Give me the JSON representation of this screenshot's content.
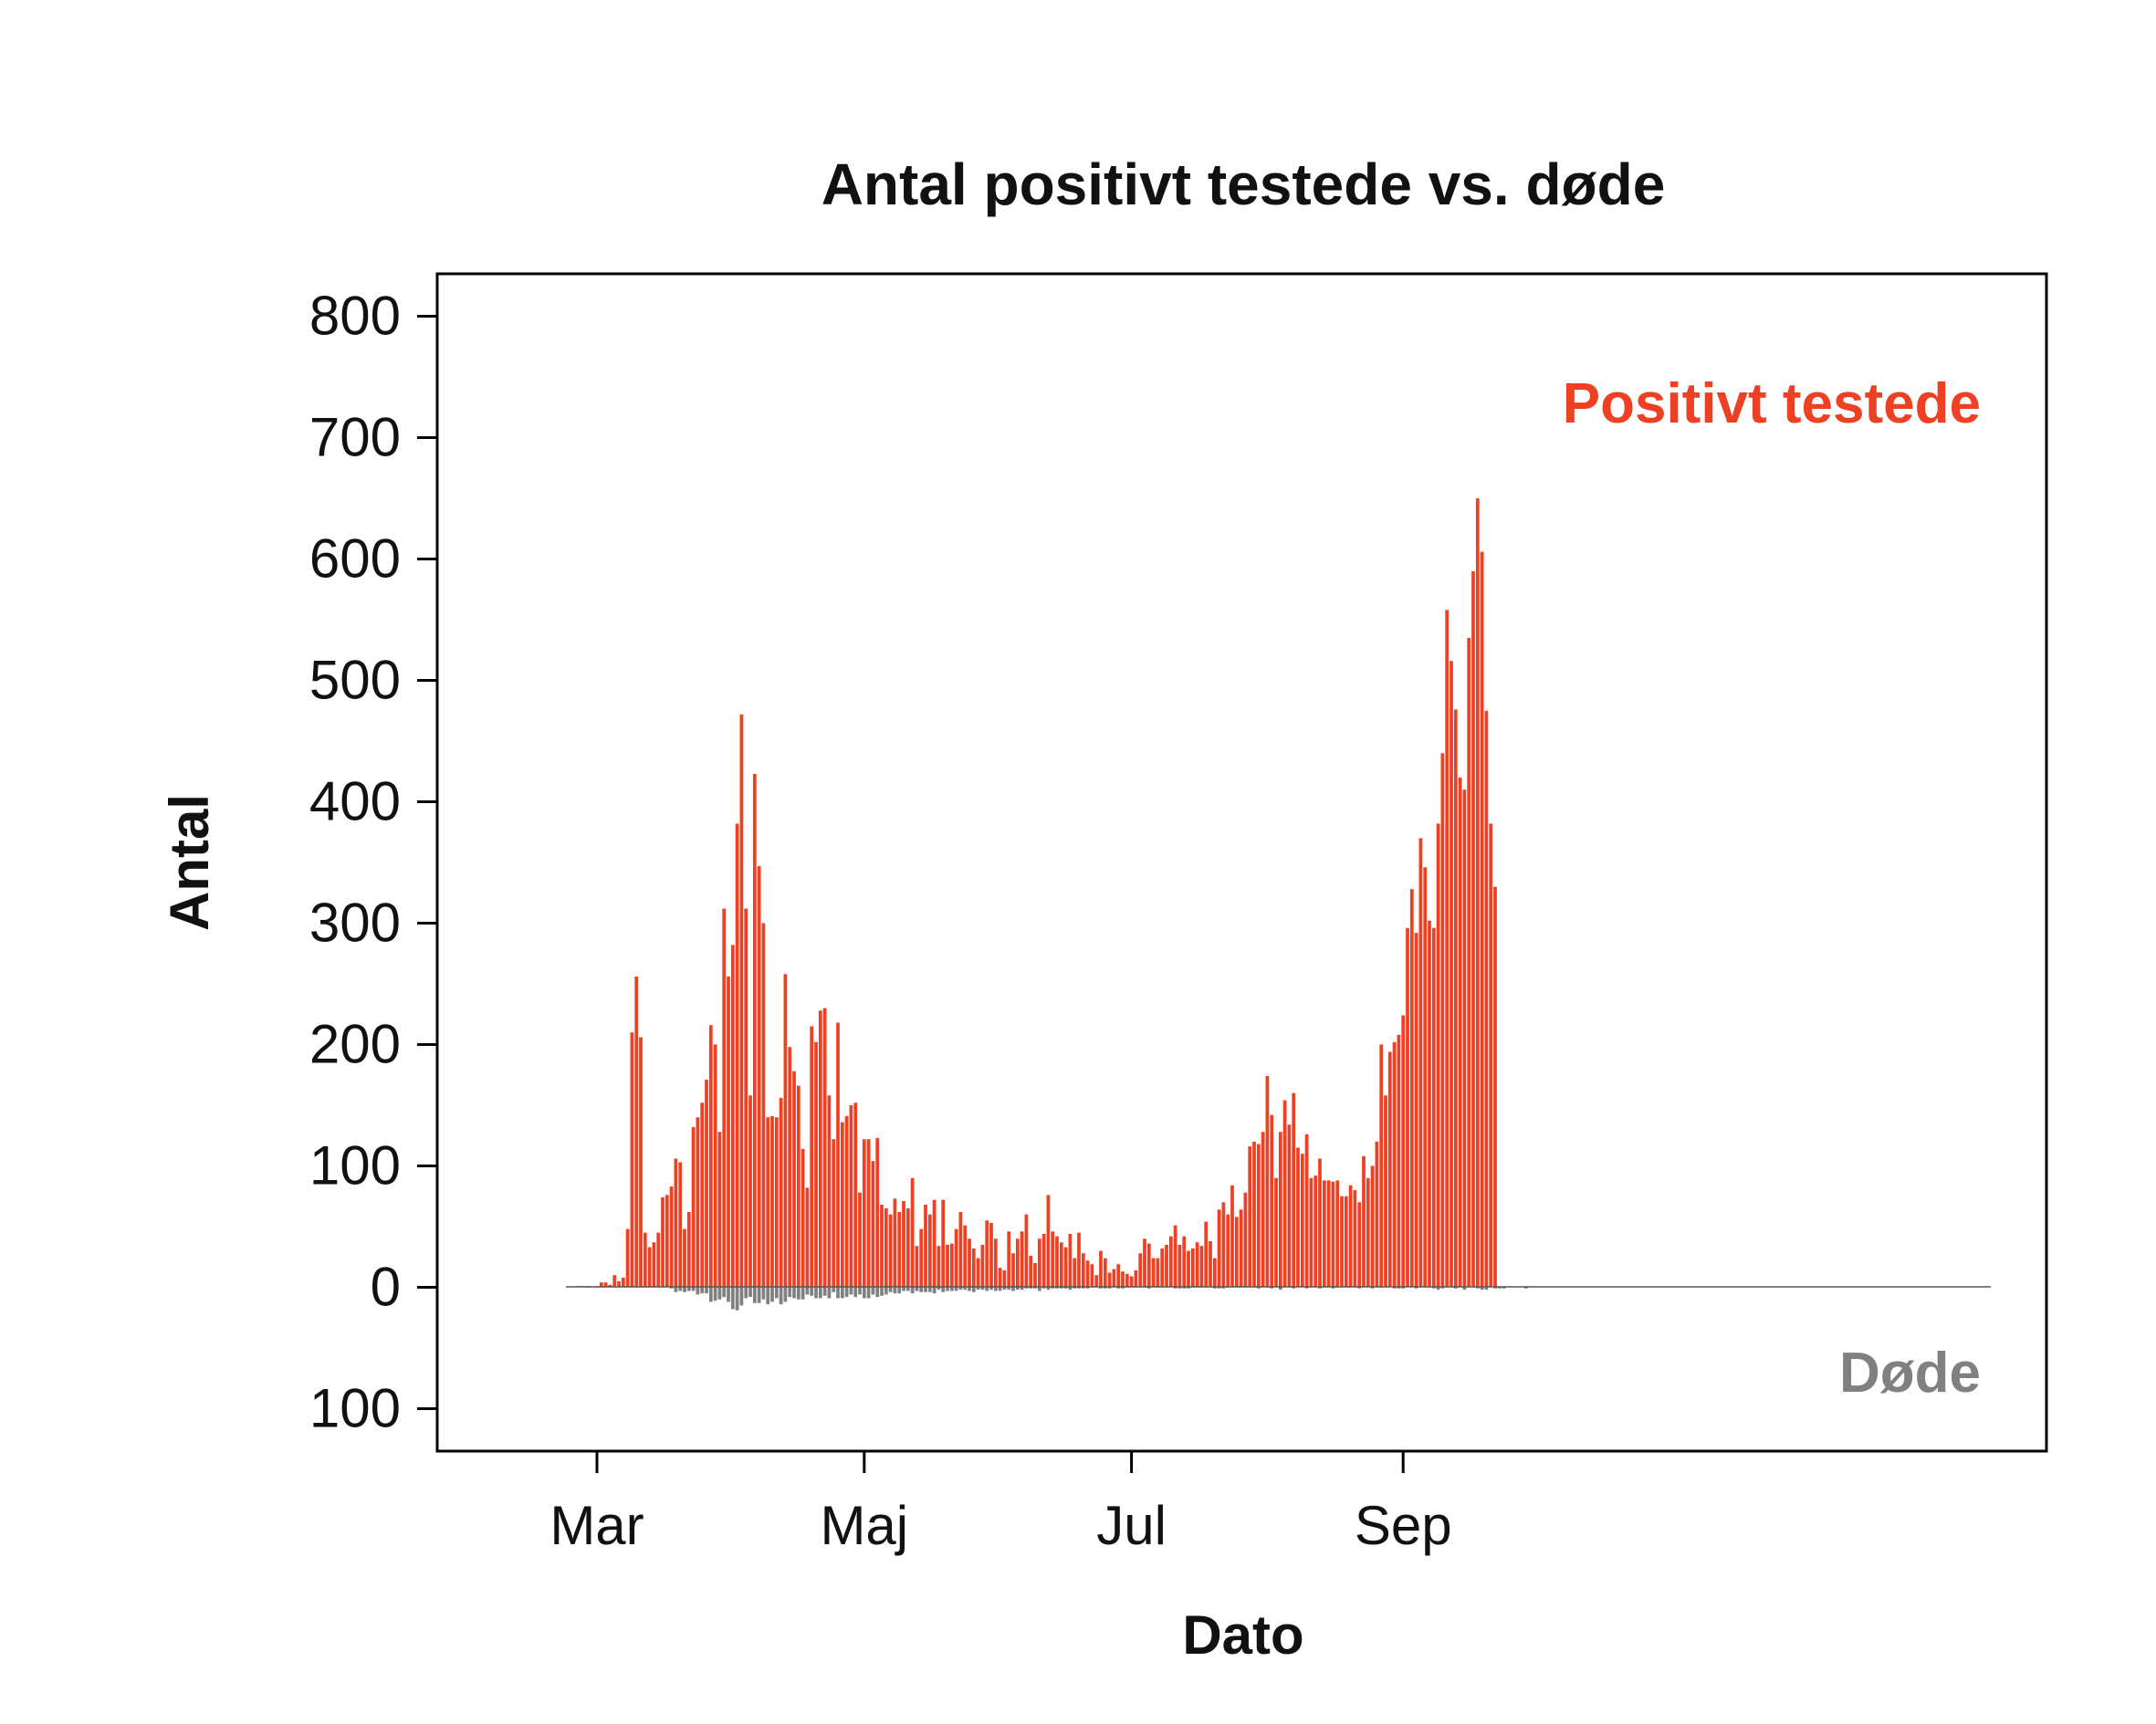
{
  "chart_data": {
    "type": "bar",
    "title": "Antal positivt testede vs. døde",
    "xlabel": "Dato",
    "ylabel": "Antal",
    "ylim": [
      -135,
      835
    ],
    "y_ticks": [
      800,
      700,
      600,
      500,
      400,
      300,
      200,
      100,
      0,
      -100
    ],
    "y_tick_labels": [
      "800",
      "700",
      "600",
      "500",
      "400",
      "300",
      "200",
      "100",
      "0",
      "100"
    ],
    "x_ticks": [
      {
        "label": "Mar",
        "day": 0
      },
      {
        "label": "Maj",
        "day": 61
      },
      {
        "label": "Jul",
        "day": 122
      },
      {
        "label": "Sep",
        "day": 184
      }
    ],
    "start_day": -4,
    "legend": [
      {
        "name": "Positivt testede",
        "color": "#ee4023",
        "position": "top-right"
      },
      {
        "name": "Døde",
        "color": "#808080",
        "position": "bottom-right"
      }
    ],
    "series": [
      {
        "name": "Positivt testede",
        "color": "#ee4023",
        "values": [
          1,
          1,
          1,
          0,
          1,
          4,
          4,
          2,
          10,
          5,
          8,
          48,
          210,
          256,
          206,
          45,
          33,
          37,
          45,
          74,
          76,
          83,
          106,
          103,
          48,
          62,
          132,
          140,
          152,
          171,
          216,
          200,
          128,
          312,
          256,
          282,
          382,
          472,
          312,
          158,
          423,
          347,
          300,
          140,
          141,
          140,
          156,
          258,
          198,
          178,
          166,
          114,
          82,
          215,
          202,
          228,
          230,
          158,
          122,
          218,
          136,
          141,
          150,
          152,
          78,
          122,
          122,
          104,
          123,
          68,
          65,
          60,
          73,
          62,
          71,
          65,
          90,
          34,
          48,
          68,
          60,
          72,
          34,
          72,
          35,
          36,
          48,
          62,
          51,
          40,
          32,
          24,
          35,
          55,
          53,
          40,
          16,
          14,
          46,
          28,
          40,
          46,
          60,
          26,
          20,
          40,
          44,
          76,
          46,
          42,
          37,
          33,
          44,
          24,
          45,
          28,
          22,
          19,
          10,
          30,
          24,
          12,
          15,
          19,
          13,
          11,
          9,
          14,
          28,
          40,
          36,
          24,
          24,
          32,
          35,
          42,
          51,
          35,
          42,
          30,
          32,
          37,
          34,
          54,
          38,
          24,
          64,
          70,
          60,
          84,
          58,
          64,
          78,
          116,
          120,
          118,
          128,
          174,
          142,
          90,
          128,
          154,
          134,
          160,
          115,
          110,
          126,
          90,
          92,
          106,
          88,
          88,
          87,
          88,
          75,
          75,
          84,
          80,
          70,
          108,
          90,
          100,
          120,
          200,
          158,
          194,
          202,
          208,
          224,
          296,
          328,
          292,
          370,
          346,
          302,
          296,
          382,
          440,
          558,
          516,
          476,
          420,
          410,
          535,
          590,
          650,
          606,
          475,
          382,
          330
        ]
      },
      {
        "name": "Døde",
        "color": "#808080",
        "values": [
          0,
          0,
          0,
          0,
          0,
          0,
          0,
          0,
          0,
          0,
          0,
          0,
          0,
          0,
          0,
          0,
          0,
          0,
          0,
          0,
          0,
          1,
          4,
          3,
          4,
          3,
          3,
          6,
          5,
          5,
          12,
          11,
          10,
          8,
          12,
          18,
          19,
          15,
          9,
          8,
          13,
          13,
          10,
          14,
          12,
          9,
          14,
          12,
          8,
          9,
          10,
          10,
          6,
          7,
          9,
          9,
          7,
          9,
          4,
          9,
          9,
          8,
          6,
          8,
          6,
          9,
          9,
          6,
          8,
          7,
          6,
          4,
          5,
          5,
          3,
          3,
          5,
          3,
          4,
          4,
          4,
          5,
          2,
          4,
          3,
          3,
          3,
          2,
          2,
          3,
          4,
          2,
          2,
          3,
          2,
          3,
          3,
          2,
          2,
          3,
          2,
          2,
          1,
          1,
          1,
          3,
          1,
          2,
          1,
          1,
          1,
          1,
          2,
          1,
          1,
          1,
          1,
          0,
          0,
          1,
          1,
          1,
          0,
          1,
          1,
          0,
          0,
          0,
          0,
          0,
          1,
          0,
          0,
          0,
          0,
          0,
          1,
          1,
          1,
          1,
          0,
          0,
          0,
          0,
          0,
          1,
          1,
          1,
          0,
          0,
          0,
          0,
          0,
          0,
          0,
          1,
          0,
          0,
          1,
          0,
          2,
          0,
          0,
          1,
          0,
          0,
          1,
          0,
          0,
          1,
          0,
          0,
          1,
          0,
          0,
          0,
          0,
          0,
          1,
          0,
          0,
          1,
          0,
          0,
          0,
          0,
          1,
          1,
          1,
          0,
          0,
          1,
          0,
          0,
          0,
          1,
          2,
          1,
          0,
          0,
          1,
          0,
          2,
          0,
          0,
          1,
          2,
          2,
          0,
          1,
          1,
          1,
          0,
          0,
          0,
          0,
          1
        ]
      }
    ]
  }
}
